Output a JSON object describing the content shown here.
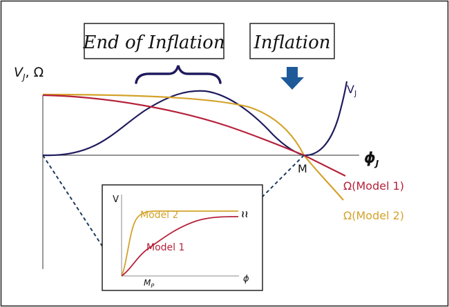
{
  "labels": {
    "end_of_inflation": "End of Inflation",
    "inflation": "Inflation",
    "y_axis": "V_J, Ω",
    "y_axis_main": "V",
    "y_axis_sub": "J",
    "y_axis_rest": ", Ω",
    "x_axis_main": "ϕ",
    "x_axis_sub": "J",
    "point_m": "M",
    "vj_main": "V",
    "vj_sub": "J",
    "omega_model1": "Ω(Model 1)",
    "omega_model2": "Ω(Model 2)"
  },
  "inset": {
    "y_axis": "V",
    "x_axis": "ϕ",
    "tick_main": "M",
    "tick_sub": "P",
    "model2": "Model 2",
    "model1": "Model 1",
    "break_symbol": "≀≀"
  },
  "colors": {
    "navy": "#1f1b5e",
    "red": "#b5213a",
    "gold": "#d4a22a",
    "arrow": "#1e5a9a",
    "dashed": "#1b3a5c",
    "frame": "#222222"
  }
}
